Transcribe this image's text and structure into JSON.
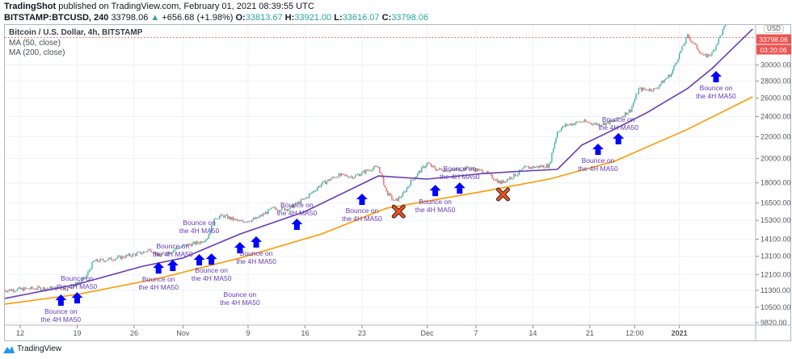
{
  "header": {
    "author": "TradingShot",
    "published": "published on TradingView.com, February 01, 2021 08:39:55 UTC",
    "symbol": "BITSTAMP:BTCUSD, 240",
    "last": "33798.06",
    "change": "+656.68 (+1.98%)",
    "o_label": "O:",
    "o": "33813.67",
    "h_label": "H:",
    "h": "33921.00",
    "l_label": "L:",
    "l": "33616.07",
    "c_label": "C:",
    "c": "33798.06"
  },
  "legend": {
    "title": "Bitcoin / U.S. Dollar, 4h, BITSTAMP",
    "ma50": "MA (50, close)",
    "ma200": "MA (200, close)"
  },
  "price_scale": {
    "currency": "USD",
    "last_price": "33798.06",
    "countdown": "03:20:06"
  },
  "footer": {
    "brand": "TradingView"
  },
  "colors": {
    "up": "#26a69a",
    "down": "#ef5350",
    "ma50": "#673ab7",
    "ma200": "#ff9800",
    "arrow": "#0000ff",
    "cross": "#f4511e",
    "label": "#673ab7"
  },
  "chart_data": {
    "type": "candlestick",
    "yscale": "log",
    "ylim": [
      9820,
      36500
    ],
    "grid": true,
    "yticks": [
      "9820.00",
      "10500.00",
      "11300.00",
      "12100.00",
      "13100.00",
      "14100.00",
      "15300.00",
      "16500.00",
      "18000.00",
      "20000.00",
      "22000.00",
      "24000.00",
      "26000.00",
      "28000.00",
      "30000.00"
    ],
    "xticks": [
      {
        "label": "12",
        "date": "2020-10-12"
      },
      {
        "label": "19",
        "date": "2020-10-19"
      },
      {
        "label": "26",
        "date": "2020-10-26"
      },
      {
        "label": "Nov",
        "date": "2020-11-01"
      },
      {
        "label": "9",
        "date": "2020-11-09"
      },
      {
        "label": "16",
        "date": "2020-11-16"
      },
      {
        "label": "23",
        "date": "2020-11-23"
      },
      {
        "label": "Dec",
        "date": "2020-12-01"
      },
      {
        "label": "7",
        "date": "2020-12-07"
      },
      {
        "label": "14",
        "date": "2020-12-14"
      },
      {
        "label": "21",
        "date": "2020-12-21"
      },
      {
        "label": "12:00",
        "date": "2020-12-26T12:00"
      },
      {
        "label": "2021",
        "date": "2021-01-01"
      }
    ],
    "price_close": [
      [
        "2020-10-10",
        11300
      ],
      [
        "2020-10-14",
        11400
      ],
      [
        "2020-10-18",
        11400
      ],
      [
        "2020-10-20",
        11900
      ],
      [
        "2020-10-21",
        12800
      ],
      [
        "2020-10-24",
        13000
      ],
      [
        "2020-10-27",
        13300
      ],
      [
        "2020-10-28",
        13500
      ],
      [
        "2020-10-29",
        13100
      ],
      [
        "2020-11-01",
        13700
      ],
      [
        "2020-11-03",
        13900
      ],
      [
        "2020-11-04",
        14200
      ],
      [
        "2020-11-05",
        15500
      ],
      [
        "2020-11-06",
        15600
      ],
      [
        "2020-11-08",
        15200
      ],
      [
        "2020-11-10",
        15400
      ],
      [
        "2020-11-12",
        16100
      ],
      [
        "2020-11-14",
        16100
      ],
      [
        "2020-11-16",
        16800
      ],
      [
        "2020-11-18",
        17900
      ],
      [
        "2020-11-20",
        18600
      ],
      [
        "2020-11-22",
        18500
      ],
      [
        "2020-11-24",
        19100
      ],
      [
        "2020-11-25",
        19300
      ],
      [
        "2020-11-26",
        17300
      ],
      [
        "2020-11-27",
        16600
      ],
      [
        "2020-11-28",
        17100
      ],
      [
        "2020-11-29",
        18100
      ],
      [
        "2020-12-01",
        19600
      ],
      [
        "2020-12-02",
        19100
      ],
      [
        "2020-12-04",
        19000
      ],
      [
        "2020-12-06",
        19200
      ],
      [
        "2020-12-08",
        18900
      ],
      [
        "2020-12-10",
        18000
      ],
      [
        "2020-12-12",
        18700
      ],
      [
        "2020-12-13",
        19200
      ],
      [
        "2020-12-16",
        19400
      ],
      [
        "2020-12-17",
        22500
      ],
      [
        "2020-12-18",
        23100
      ],
      [
        "2020-12-20",
        23500
      ],
      [
        "2020-12-22",
        23200
      ],
      [
        "2020-12-24",
        23500
      ],
      [
        "2020-12-26",
        24700
      ],
      [
        "2020-12-27",
        27000
      ],
      [
        "2020-12-29",
        27000
      ],
      [
        "2020-12-31",
        28900
      ],
      [
        "2021-01-02",
        34000
      ],
      [
        "2021-01-04",
        31100
      ],
      [
        "2021-01-05",
        31500
      ],
      [
        "2021-01-06",
        34000
      ],
      [
        "2021-01-07",
        36500
      ]
    ],
    "series": [
      {
        "name": "MA (50, close)",
        "points": [
          [
            "2020-10-10",
            10900
          ],
          [
            "2020-10-19",
            11600
          ],
          [
            "2020-10-27",
            12540
          ],
          [
            "2020-11-01",
            13000
          ],
          [
            "2020-11-08",
            14420
          ],
          [
            "2020-11-16",
            15900
          ],
          [
            "2020-11-25",
            18550
          ],
          [
            "2020-12-01",
            18300
          ],
          [
            "2020-12-08",
            18750
          ],
          [
            "2020-12-13",
            18950
          ],
          [
            "2020-12-17",
            19080
          ],
          [
            "2020-12-20",
            21200
          ],
          [
            "2020-12-24",
            22700
          ],
          [
            "2020-12-28",
            24400
          ],
          [
            "2021-01-02",
            27100
          ],
          [
            "2021-01-05",
            29540
          ],
          [
            "2021-01-10",
            35070
          ]
        ]
      },
      {
        "name": "MA (200, close)",
        "points": [
          [
            "2020-10-10",
            10640
          ],
          [
            "2020-10-19",
            11100
          ],
          [
            "2020-10-29",
            11900
          ],
          [
            "2020-11-08",
            13000
          ],
          [
            "2020-11-18",
            14420
          ],
          [
            "2020-11-26",
            16130
          ],
          [
            "2020-12-08",
            17360
          ],
          [
            "2020-12-16",
            18300
          ],
          [
            "2020-12-24",
            19760
          ],
          [
            "2021-01-02",
            22700
          ],
          [
            "2021-01-10",
            26140
          ]
        ]
      }
    ],
    "annotations": {
      "bounce_label": [
        "Bounce on",
        "the 4H MA50"
      ],
      "bounces": [
        [
          "2020-10-17",
          11100
        ],
        [
          "2020-10-19",
          11210
        ],
        [
          "2020-10-29",
          12760
        ],
        [
          "2020-10-30T18:00",
          12900
        ],
        [
          "2020-11-03",
          13220
        ],
        [
          "2020-11-04T12:00",
          13260
        ],
        [
          "2020-11-08",
          13930
        ],
        [
          "2020-11-10",
          14280
        ],
        [
          "2020-11-15",
          15420
        ],
        [
          "2020-11-23",
          17180
        ],
        [
          "2020-12-02",
          17850
        ],
        [
          "2020-12-05",
          18040
        ],
        [
          "2020-12-22",
          21340
        ],
        [
          "2020-12-24T12:00",
          22340
        ],
        [
          "2021-01-05T12:00",
          29230
        ]
      ],
      "fails": [
        [
          "2020-11-27T12:00",
          15900
        ],
        [
          "2020-12-10T08:00",
          17120
        ]
      ]
    }
  }
}
